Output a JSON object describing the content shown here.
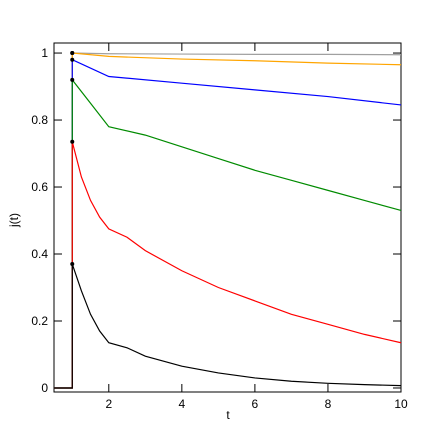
{
  "chart_data": {
    "type": "line",
    "x_label": "t",
    "y_label": "j(t)",
    "xlim": [
      0.5,
      10
    ],
    "ylim": [
      -0.012,
      1.03
    ],
    "xticks": [
      2,
      4,
      6,
      8,
      10
    ],
    "yticks": [
      0,
      0.2,
      0.4,
      0.6,
      0.8,
      1
    ],
    "series": [
      {
        "color": "#a0a0a0",
        "x": [
          0.5,
          1,
          1,
          2,
          4,
          6,
          8,
          10
        ],
        "values": [
          0,
          0,
          1.0,
          0.998,
          0.997,
          0.996,
          0.996,
          0.995
        ]
      },
      {
        "color": "#ffa500",
        "x": [
          0.5,
          1,
          1,
          2,
          4,
          6,
          8,
          10
        ],
        "values": [
          0,
          0,
          1.0,
          0.99,
          0.982,
          0.977,
          0.97,
          0.965
        ]
      },
      {
        "color": "#0000ff",
        "x": [
          0.5,
          1,
          1,
          2,
          4,
          6,
          8,
          10
        ],
        "values": [
          0,
          0,
          0.98,
          0.93,
          0.91,
          0.89,
          0.87,
          0.845
        ]
      },
      {
        "color": "#008b00",
        "x": [
          0.5,
          1,
          1,
          1.5,
          2,
          3,
          4,
          5,
          6,
          7,
          8,
          9,
          10
        ],
        "values": [
          0,
          0,
          0.92,
          0.85,
          0.78,
          0.755,
          0.72,
          0.685,
          0.65,
          0.62,
          0.59,
          0.56,
          0.53
        ]
      },
      {
        "color": "#ff0000",
        "x": [
          0.5,
          1,
          1,
          1.25,
          1.5,
          1.75,
          2,
          2.5,
          3,
          4,
          5,
          6,
          7,
          8,
          9,
          10
        ],
        "values": [
          0,
          0,
          0.735,
          0.63,
          0.56,
          0.51,
          0.475,
          0.45,
          0.41,
          0.35,
          0.3,
          0.26,
          0.22,
          0.19,
          0.16,
          0.135
        ]
      },
      {
        "color": "#000000",
        "x": [
          0.5,
          1,
          1,
          1.25,
          1.5,
          1.75,
          2,
          2.5,
          3,
          4,
          5,
          6,
          7,
          8,
          9,
          10
        ],
        "values": [
          0,
          0,
          0.37,
          0.29,
          0.22,
          0.17,
          0.135,
          0.12,
          0.095,
          0.065,
          0.045,
          0.03,
          0.02,
          0.014,
          0.01,
          0.007
        ]
      }
    ]
  }
}
